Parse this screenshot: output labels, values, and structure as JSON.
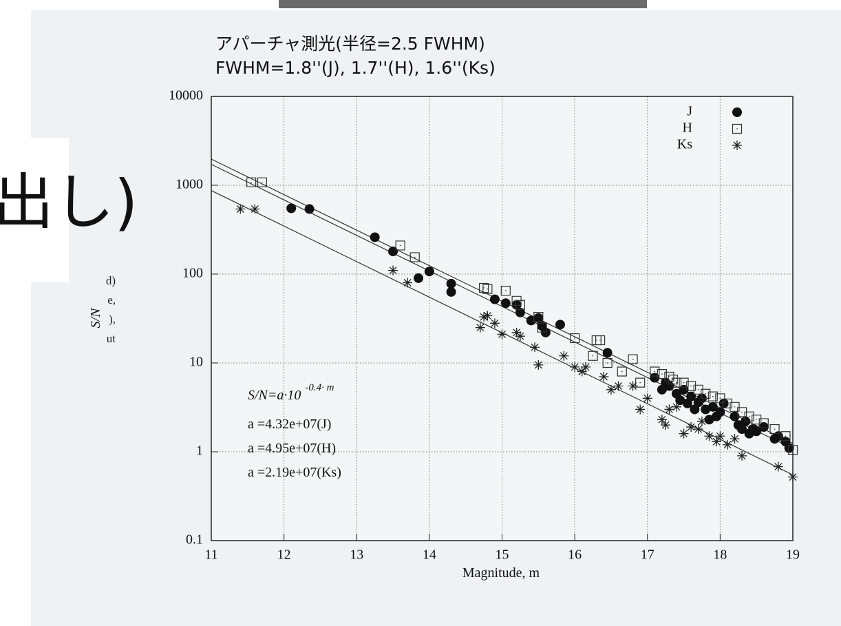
{
  "background": {
    "heading_fragment": "出し)",
    "text_fragments": [
      "d)",
      "e,",
      "),",
      "ut"
    ]
  },
  "chart_data": {
    "type": "scatter",
    "title": "アパーチャ測光(半径=2.5 FWHM)",
    "subtitle": "FWHM=1.8''(J), 1.7''(H), 1.6''(Ks)",
    "x_label": "Magnitude, m",
    "y_label": "S/N",
    "xlim": [
      11,
      19
    ],
    "ylim": [
      0.1,
      10000
    ],
    "log_y": true,
    "grid": true,
    "legend": "top-right",
    "xticks": [
      11,
      12,
      13,
      14,
      15,
      16,
      17,
      18,
      19
    ],
    "yticks": [
      0.1,
      1,
      10,
      100,
      1000,
      10000
    ],
    "formula": {
      "base": "S/N=a·10",
      "exponent": "-0.4· m"
    },
    "fit_slope": -0.4,
    "fits": [
      {
        "a": 43200000,
        "label": "a =4.32e+07(J)"
      },
      {
        "a": 49500000,
        "label": "a =4.95e+07(H)"
      },
      {
        "a": 21900000,
        "label": "a =2.19e+07(Ks)"
      }
    ],
    "series": [
      {
        "name": "J",
        "marker": "circle",
        "color": "#111111",
        "x": [
          12.1,
          12.35,
          13.25,
          13.5,
          13.85,
          14.0,
          14.3,
          14.3,
          14.9,
          15.05,
          15.2,
          15.25,
          15.4,
          15.5,
          15.55,
          15.6,
          15.8,
          16.45,
          17.1,
          17.2,
          17.25,
          17.3,
          17.4,
          17.45,
          17.5,
          17.55,
          17.6,
          17.65,
          17.7,
          17.75,
          17.8,
          17.85,
          17.9,
          17.95,
          18.0,
          18.05,
          18.2,
          18.25,
          18.3,
          18.35,
          18.4,
          18.45,
          18.5,
          18.6,
          18.75,
          18.8,
          18.9,
          18.95
        ],
        "values": [
          550,
          540,
          260,
          180,
          90,
          107,
          78,
          63,
          52,
          47,
          45,
          37,
          30,
          32,
          26,
          22,
          27,
          13,
          6.8,
          5,
          6,
          5.5,
          4.5,
          3.8,
          5,
          3.5,
          4.2,
          3,
          3.6,
          4,
          3,
          2.3,
          3.2,
          2.5,
          2.8,
          3.5,
          2.5,
          2,
          1.8,
          2.2,
          1.6,
          1.8,
          1.7,
          1.9,
          1.4,
          1.5,
          1.3,
          1.1
        ]
      },
      {
        "name": "H",
        "marker": "square",
        "color": "#333333",
        "x": [
          11.55,
          11.7,
          13.6,
          13.8,
          14.75,
          14.8,
          15.05,
          15.2,
          15.25,
          15.5,
          15.55,
          16.0,
          16.25,
          16.3,
          16.35,
          16.45,
          16.65,
          16.8,
          16.9,
          17.1,
          17.2,
          17.3,
          17.35,
          17.4,
          17.5,
          17.6,
          17.7,
          17.8,
          17.9,
          18.0,
          18.1,
          18.2,
          18.3,
          18.4,
          18.5,
          18.6,
          18.75,
          18.9,
          19.0
        ],
        "values": [
          1080,
          1080,
          210,
          155,
          70,
          68,
          65,
          50,
          45,
          33,
          25,
          19,
          12,
          18,
          18,
          10,
          8,
          11,
          6,
          8,
          7.5,
          7,
          6.5,
          6,
          6,
          5.5,
          5,
          4.5,
          4.2,
          4,
          3.5,
          3.2,
          2.8,
          2.5,
          2.3,
          2.1,
          1.8,
          1.5,
          1.05
        ]
      },
      {
        "name": "Ks",
        "marker": "star",
        "color": "#222222",
        "x": [
          11.4,
          11.6,
          13.5,
          13.7,
          14.7,
          14.75,
          14.8,
          14.9,
          15.0,
          15.2,
          15.25,
          15.45,
          15.5,
          15.85,
          16.0,
          16.1,
          16.15,
          16.4,
          16.5,
          16.6,
          16.8,
          16.9,
          17.0,
          17.2,
          17.25,
          17.3,
          17.4,
          17.5,
          17.6,
          17.7,
          17.75,
          17.85,
          17.95,
          18.0,
          18.1,
          18.2,
          18.3,
          18.8,
          19.0
        ],
        "values": [
          540,
          540,
          110,
          80,
          25,
          33,
          34,
          28,
          21,
          22,
          20,
          15,
          9.5,
          12,
          9,
          8,
          9,
          7,
          5,
          5.5,
          5.5,
          3,
          4,
          2.3,
          2,
          3,
          3.2,
          1.6,
          1.9,
          1.8,
          2.2,
          1.5,
          1.3,
          1.5,
          1.2,
          1.4,
          0.9,
          0.68,
          0.52
        ]
      }
    ]
  }
}
